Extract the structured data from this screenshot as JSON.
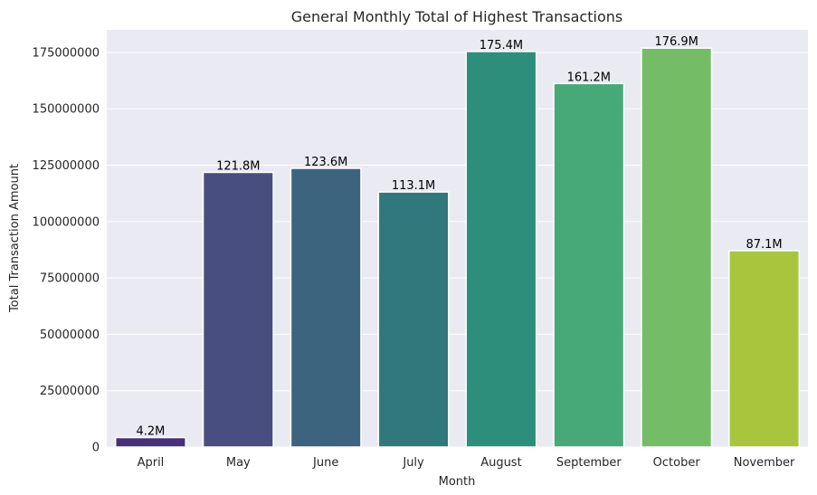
{
  "chart_data": {
    "type": "bar",
    "title": "General Monthly Total of Highest Transactions",
    "xlabel": "Month",
    "ylabel": "Total Transaction Amount",
    "categories": [
      "April",
      "May",
      "June",
      "July",
      "August",
      "September",
      "October",
      "November"
    ],
    "values": [
      4200000,
      121800000,
      123600000,
      113100000,
      175400000,
      161200000,
      176900000,
      87100000
    ],
    "data_labels": [
      "4.2M",
      "121.8M",
      "123.6M",
      "113.1M",
      "175.4M",
      "161.2M",
      "176.9M",
      "87.1M"
    ],
    "bar_colors": [
      "#46307a",
      "#484e7f",
      "#3d647f",
      "#31787d",
      "#2d8f7b",
      "#47a978",
      "#74bd66",
      "#a9c53e"
    ],
    "yticks": [
      0,
      25000000,
      50000000,
      75000000,
      100000000,
      125000000,
      150000000,
      175000000
    ],
    "ytick_labels": [
      "0",
      "25000000",
      "50000000",
      "75000000",
      "100000000",
      "125000000",
      "150000000",
      "175000000"
    ],
    "ylim": [
      0,
      185000000
    ],
    "grid": true,
    "background_color": "#eaeaf2",
    "grid_color": "#ffffff"
  }
}
